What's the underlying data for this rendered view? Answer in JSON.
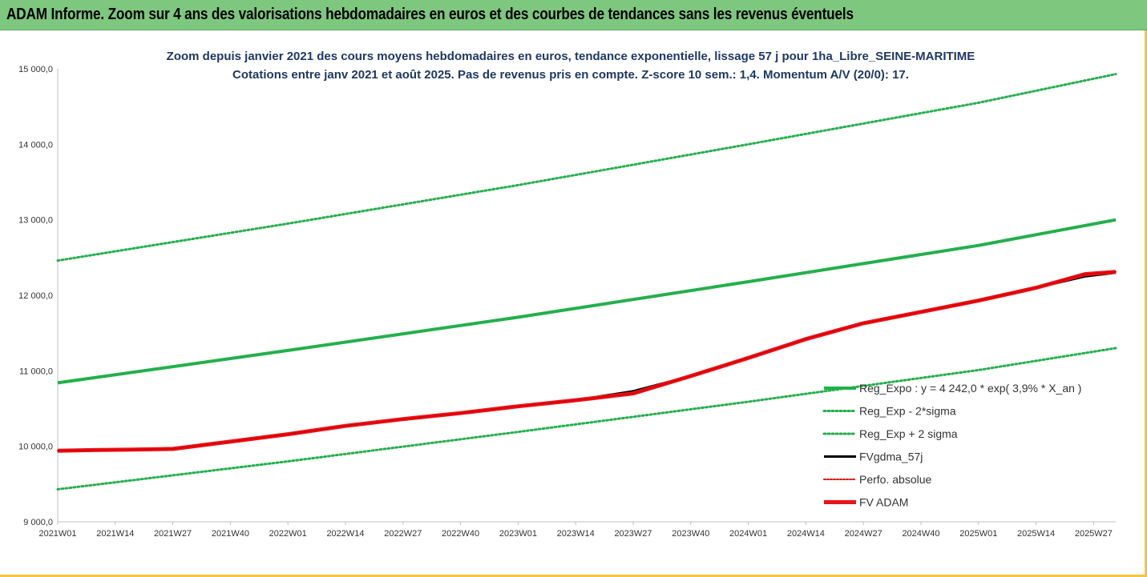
{
  "banner": {
    "title": "ADAM Informe. Zoom sur 4 ans des valorisations hebdomadaires en euros et des courbes de tendances sans les revenus éventuels",
    "bg_color": "#7dc77e"
  },
  "chart_data": {
    "type": "line",
    "title": "Zoom depuis janvier 2021 des cours moyens hebdomadaires en euros, tendance exponentielle, lissage 57 j pour 1ha_Libre_SEINE-MARITIME",
    "subtitle": "Cotations entre janv 2021 et août 2025. Pas de revenus pris en compte. Z-score 10 sem.: 1,4. Momentum A/V (20/0): 17.",
    "xlabel": "",
    "ylabel": "",
    "ylim": [
      9000,
      15000
    ],
    "yticks": [
      "9 000,0",
      "10 000,0",
      "11 000,0",
      "12 000,0",
      "13 000,0",
      "14 000,0",
      "15 000,0"
    ],
    "ytick_values": [
      9000,
      10000,
      11000,
      12000,
      13000,
      14000,
      15000
    ],
    "xticks": [
      "2021W01",
      "2021W14",
      "2021W27",
      "2021W40",
      "2022W01",
      "2022W14",
      "2022W27",
      "2022W40",
      "2023W01",
      "2023W14",
      "2023W27",
      "2023W40",
      "2024W01",
      "2024W14",
      "2024W27",
      "2024W40",
      "2025W01",
      "2025W14",
      "2025W27"
    ],
    "grid": false,
    "legend_position": "right",
    "x_weeks_total": 240,
    "series": [
      {
        "name": "Reg_Expo : y = 4 242,0 * exp( 3,9% *  X_an )",
        "color": "#22b04b",
        "style": "solid",
        "width": 4,
        "x": [
          0,
          52,
          104,
          156,
          208,
          239
        ],
        "values": [
          10840,
          11270,
          11710,
          12180,
          12660,
          13000
        ]
      },
      {
        "name": "Reg_Exp - 2*sigma",
        "color": "#22b04b",
        "style": "dotted",
        "width": 3,
        "x": [
          0,
          52,
          104,
          156,
          208,
          239
        ],
        "values": [
          9430,
          9800,
          10190,
          10590,
          11010,
          11300
        ]
      },
      {
        "name": "Reg_Exp + 2 sigma",
        "color": "#22b04b",
        "style": "dotted",
        "width": 3,
        "x": [
          0,
          52,
          104,
          156,
          208,
          239
        ],
        "values": [
          12460,
          12950,
          13460,
          14000,
          14550,
          14930
        ]
      },
      {
        "name": "FVgdma_57j",
        "color": "#000000",
        "style": "solid",
        "width": 3,
        "x": [
          0,
          8,
          16,
          26,
          40,
          52,
          65,
          78,
          91,
          104,
          117,
          130,
          143,
          156,
          169,
          182,
          195,
          208,
          221,
          232,
          239
        ],
        "values": [
          9940,
          9950,
          9955,
          9975,
          10070,
          10160,
          10270,
          10360,
          10440,
          10530,
          10610,
          10730,
          10930,
          11170,
          11420,
          11630,
          11780,
          11930,
          12100,
          12250,
          12300
        ]
      },
      {
        "name": "Perfo. absolue",
        "color": "#e00000",
        "style": "dotted",
        "width": 2,
        "x": [
          0,
          8,
          16,
          26,
          40,
          52,
          65,
          78,
          91,
          104,
          117,
          130,
          143,
          156,
          169,
          182,
          195,
          208,
          221,
          232,
          239
        ],
        "values": [
          9940,
          9950,
          9955,
          9965,
          10070,
          10160,
          10270,
          10360,
          10440,
          10530,
          10610,
          10700,
          10930,
          11170,
          11420,
          11630,
          11780,
          11930,
          12100,
          12280,
          12310
        ]
      },
      {
        "name": "FV ADAM",
        "color": "#e8141c",
        "style": "solid",
        "width": 5,
        "x": [
          0,
          8,
          16,
          26,
          40,
          52,
          65,
          78,
          91,
          104,
          117,
          130,
          143,
          156,
          169,
          182,
          195,
          208,
          221,
          232,
          239
        ],
        "values": [
          9940,
          9950,
          9955,
          9965,
          10070,
          10160,
          10270,
          10360,
          10440,
          10530,
          10610,
          10700,
          10930,
          11170,
          11420,
          11630,
          11780,
          11930,
          12100,
          12280,
          12310
        ]
      }
    ]
  }
}
